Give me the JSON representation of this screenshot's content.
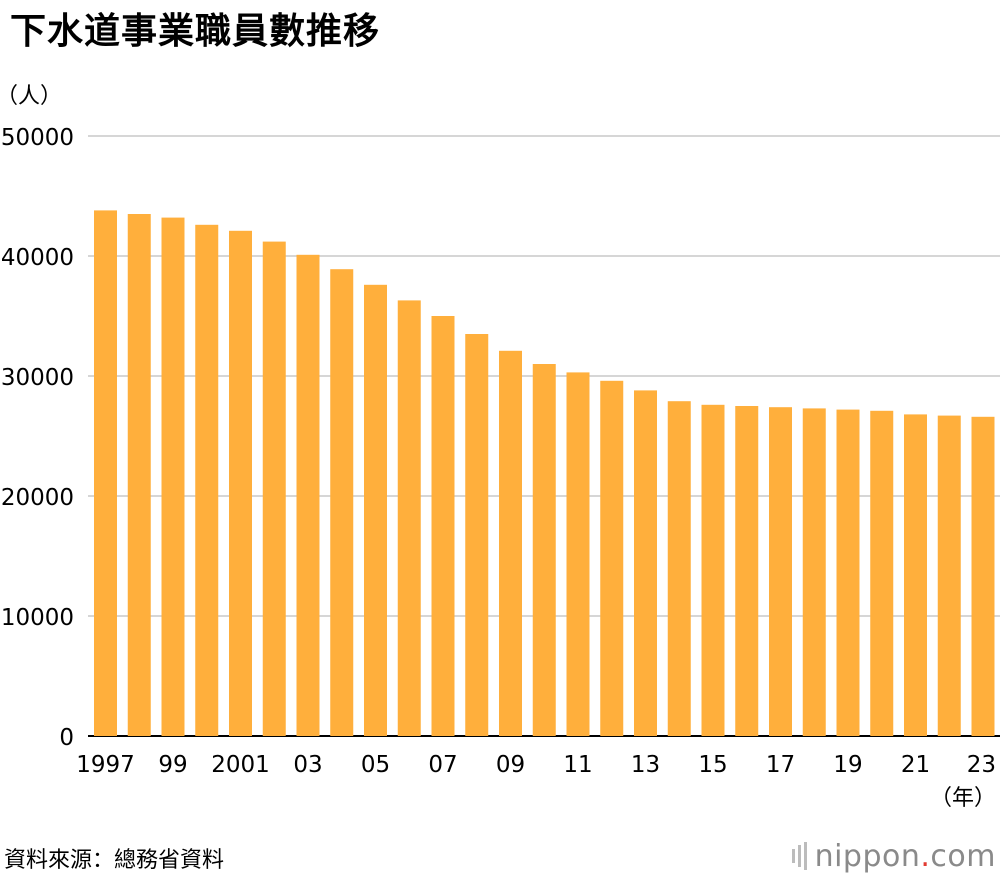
{
  "title": "下水道事業職員數推移",
  "source": "資料來源：總務省資料",
  "logo": {
    "name": "nippon",
    "dot": ".",
    "suffix": "com"
  },
  "colors": {
    "bar": "#FFAF3C",
    "grid": "#c8c8c8",
    "axis": "#000000",
    "logo_dot": "#e23b32"
  },
  "chart_data": {
    "type": "bar",
    "title": "下水道事業職員數推移",
    "ylabel": "（人）",
    "xlabel": "（年）",
    "ylim": [
      0,
      50000
    ],
    "yticks": [
      0,
      10000,
      20000,
      30000,
      40000,
      50000
    ],
    "grid": true,
    "categories": [
      "1997",
      "1998",
      "1999",
      "2000",
      "2001",
      "2002",
      "2003",
      "2004",
      "2005",
      "2006",
      "2007",
      "2008",
      "2009",
      "2010",
      "2011",
      "2012",
      "2013",
      "2014",
      "2015",
      "2016",
      "2017",
      "2018",
      "2019",
      "2020",
      "2021",
      "2022",
      "2023"
    ],
    "tick_labels": [
      "1997",
      "",
      "99",
      "",
      "2001",
      "",
      "03",
      "",
      "05",
      "",
      "07",
      "",
      "09",
      "",
      "11",
      "",
      "13",
      "",
      "15",
      "",
      "17",
      "",
      "19",
      "",
      "21",
      "",
      "23"
    ],
    "values": [
      43800,
      43500,
      43200,
      42600,
      42100,
      41200,
      40100,
      38900,
      37600,
      36300,
      35000,
      33500,
      32100,
      31000,
      30300,
      29600,
      28800,
      27900,
      27600,
      27500,
      27400,
      27300,
      27200,
      27100,
      26800,
      26700,
      26600
    ]
  }
}
